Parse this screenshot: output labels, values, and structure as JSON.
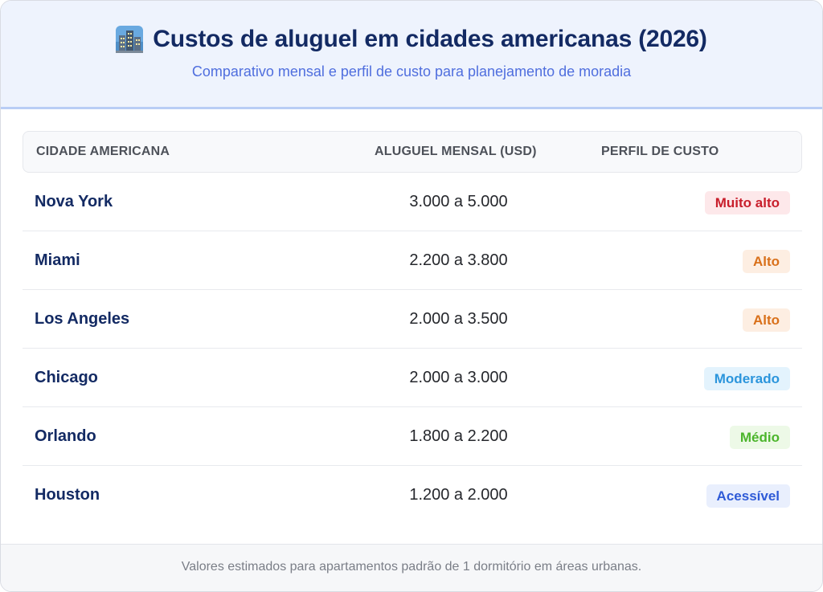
{
  "header": {
    "icon": "city-buildings-icon",
    "title": "Custos de aluguel em cidades americanas (2026)",
    "subtitle": "Comparativo mensal e perfil de custo para planejamento de moradia"
  },
  "table": {
    "columns": [
      "CIDADE AMERICANA",
      "ALUGUEL MENSAL (USD)",
      "PERFIL DE CUSTO"
    ],
    "rows": [
      {
        "city": "Nova York",
        "rent": "3.000 a 5.000",
        "profile": "Muito alto",
        "badge_bg": "#fde8ea",
        "badge_fg": "#c81e2b"
      },
      {
        "city": "Miami",
        "rent": "2.200 a 3.800",
        "profile": "Alto",
        "badge_bg": "#fdeee2",
        "badge_fg": "#d9701a"
      },
      {
        "city": "Los Angeles",
        "rent": "2.000 a 3.500",
        "profile": "Alto",
        "badge_bg": "#fdeee2",
        "badge_fg": "#d9701a"
      },
      {
        "city": "Chicago",
        "rent": "2.000 a 3.000",
        "profile": "Moderado",
        "badge_bg": "#e3f3fd",
        "badge_fg": "#2b95dc"
      },
      {
        "city": "Orlando",
        "rent": "1.800 a 2.200",
        "profile": "Médio",
        "badge_bg": "#edf9e7",
        "badge_fg": "#4bb52b"
      },
      {
        "city": "Houston",
        "rent": "1.200 a 2.000",
        "profile": "Acessível",
        "badge_bg": "#e9effd",
        "badge_fg": "#2f5bd7"
      }
    ]
  },
  "footer": {
    "note": "Valores estimados para apartamentos padrão de 1 dormitório em áreas urbanas."
  }
}
